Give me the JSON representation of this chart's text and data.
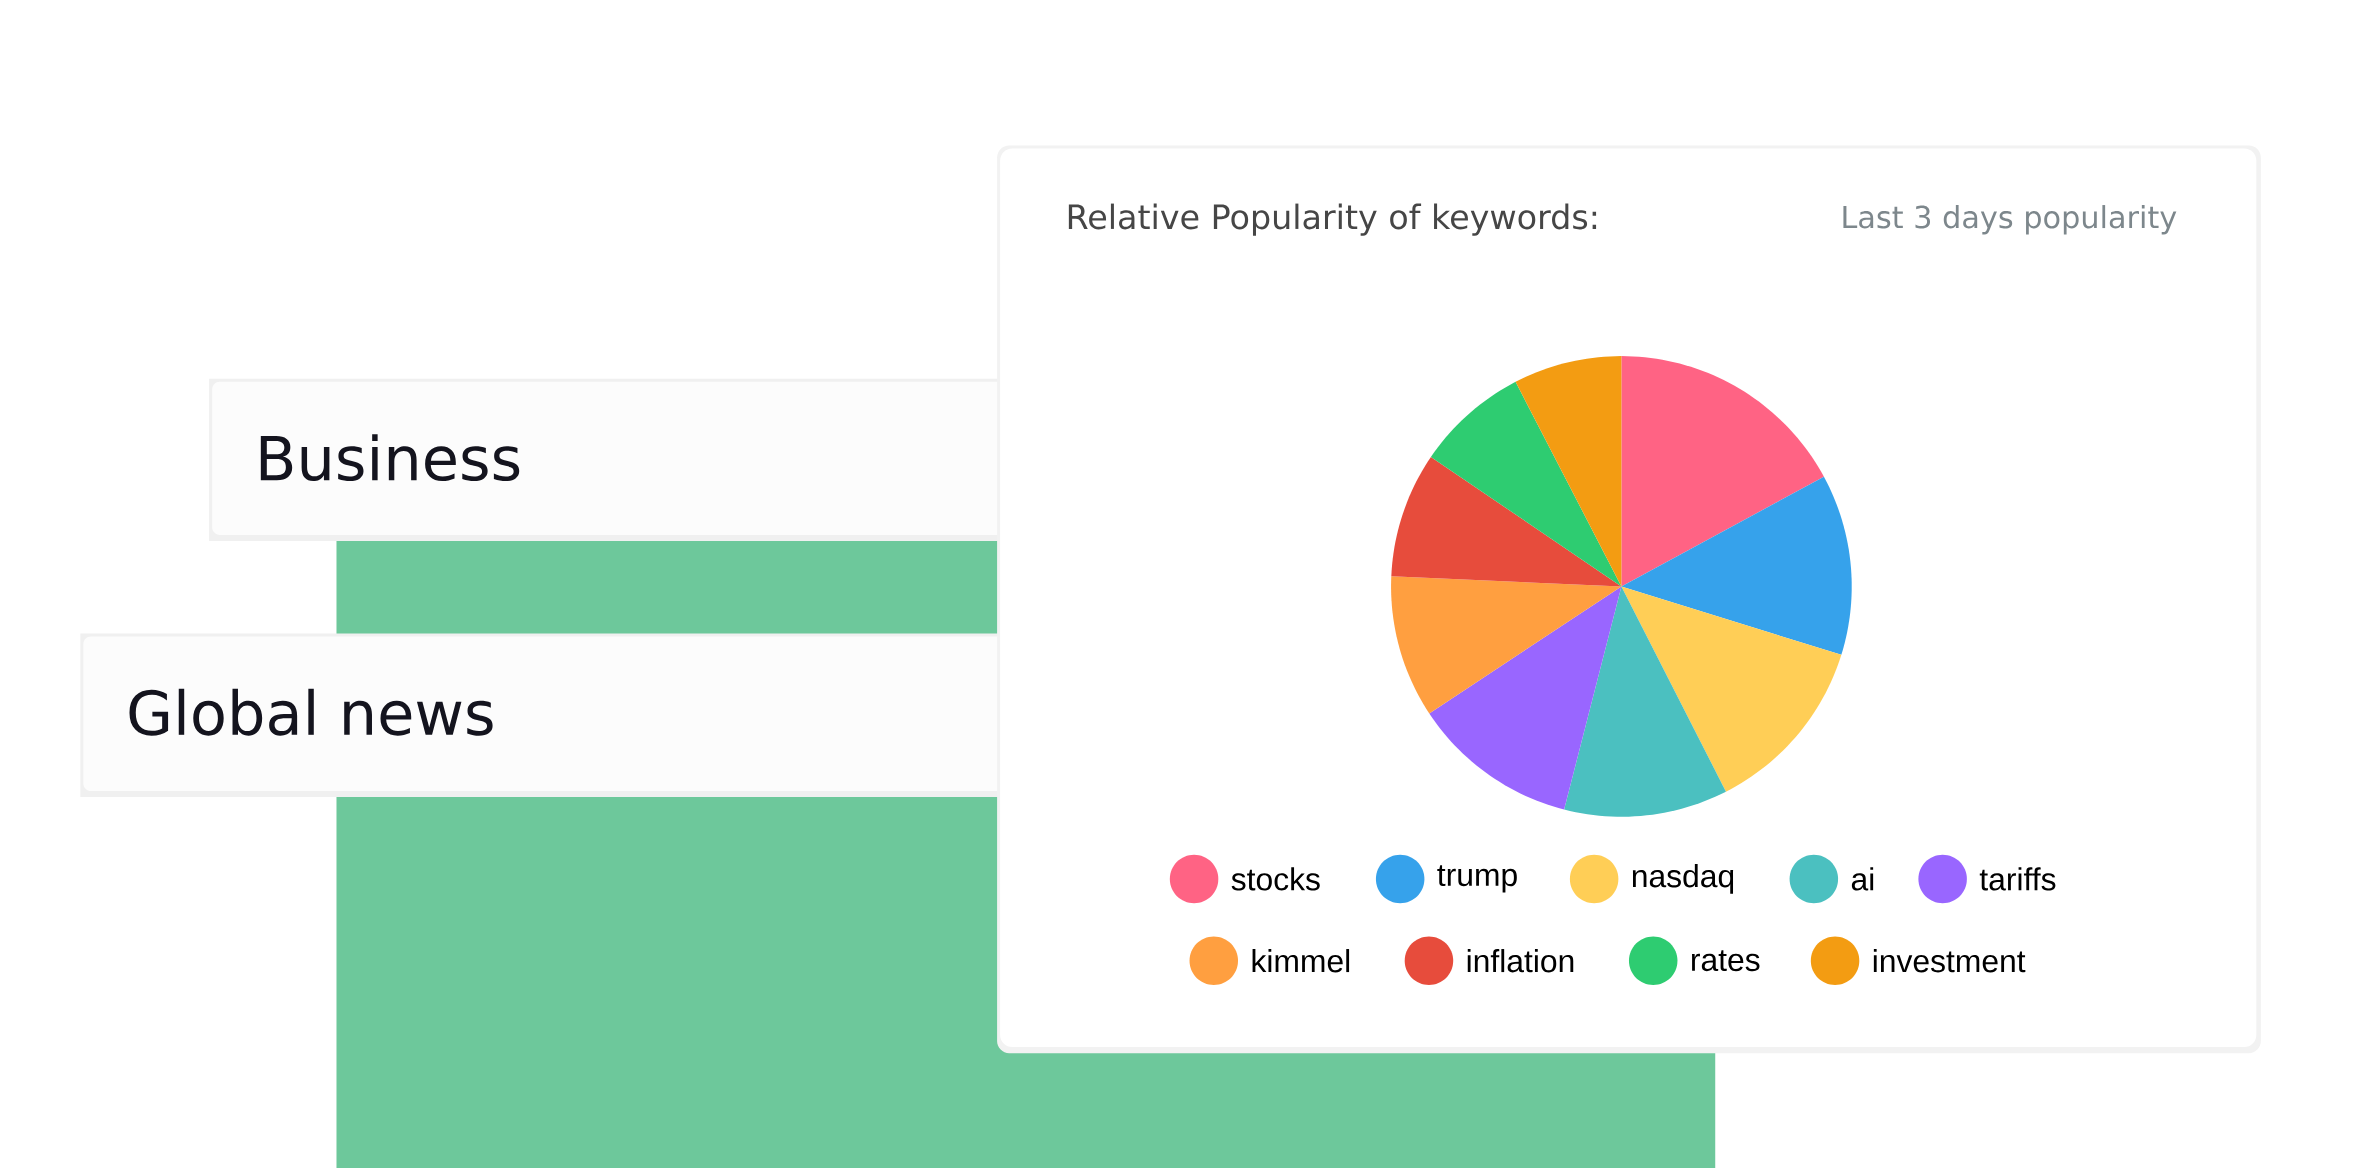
{
  "chart_data": {
    "type": "pie",
    "title": "Relative Popularity of keywords:",
    "subtitle": "Last 3 days popularity",
    "categories": [
      "stocks",
      "trump",
      "nasdaq",
      "ai",
      "tariffs",
      "kimmel",
      "inflation",
      "rates",
      "investment"
    ],
    "values": [
      17.1,
      12.7,
      12.7,
      11.5,
      11.7,
      10.0,
      8.8,
      7.9,
      7.6
    ],
    "colors": [
      "#ff6384",
      "#36a2eb",
      "#ffce56",
      "#4bc0c0",
      "#9966ff",
      "#ff9f40",
      "#e74c3c",
      "#2ecc71",
      "#f39c12"
    ],
    "legend": "bottom",
    "annotations": [
      "Business",
      "Global news"
    ]
  }
}
